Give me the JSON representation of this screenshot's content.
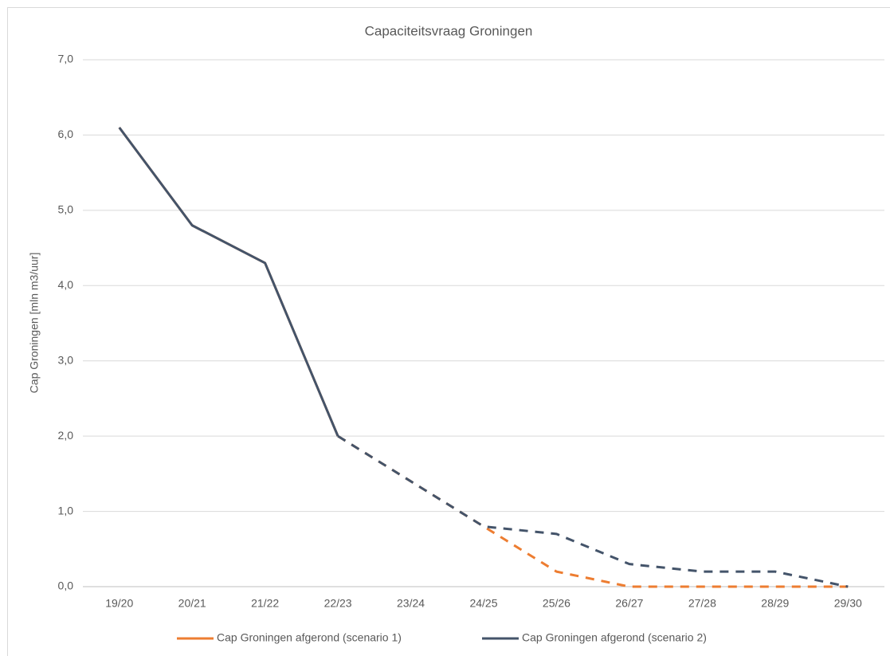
{
  "chart_data": {
    "type": "line",
    "title": "Capaciteitsvraag Groningen",
    "y_label": "Cap Groningen [mln m3/uur]",
    "categories": [
      "19/20",
      "20/21",
      "21/22",
      "22/23",
      "23/24",
      "24/25",
      "25/26",
      "26/27",
      "27/28",
      "28/29",
      "29/30"
    ],
    "series": [
      {
        "name": "Cap Groningen afgerond (scenario 1)",
        "color": "#ed7d31",
        "dashed_from": 3,
        "values": [
          6.1,
          4.8,
          4.3,
          2.0,
          1.4,
          0.8,
          0.2,
          0.0,
          0.0,
          0.0,
          0.0
        ]
      },
      {
        "name": "Cap Groningen afgerond (scenario 2)",
        "color": "#44546a",
        "dashed_from": 3,
        "values": [
          6.1,
          4.8,
          4.3,
          2.0,
          1.4,
          0.8,
          0.7,
          0.3,
          0.2,
          0.2,
          0.0
        ]
      }
    ],
    "ylim": [
      0,
      7
    ],
    "yticks": [
      {
        "value": 0,
        "label": "0,0"
      },
      {
        "value": 1,
        "label": "1,0"
      },
      {
        "value": 2,
        "label": "2,0"
      },
      {
        "value": 3,
        "label": "3,0"
      },
      {
        "value": 4,
        "label": "4,0"
      },
      {
        "value": 5,
        "label": "5,0"
      },
      {
        "value": 6,
        "label": "6,0"
      },
      {
        "value": 7,
        "label": "7,0"
      }
    ],
    "grid": true,
    "legend": "bottom"
  }
}
